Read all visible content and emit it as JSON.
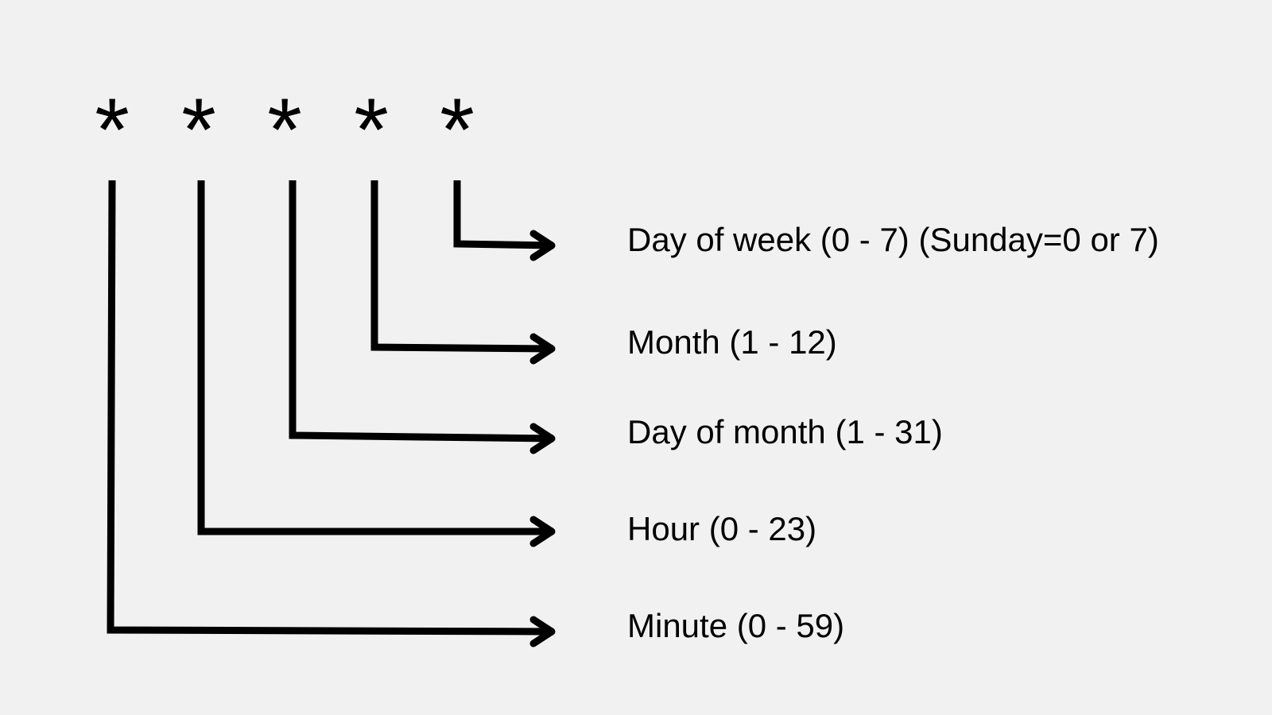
{
  "cron_fields": [
    {
      "symbol": "*",
      "label": "Minute (0 - 59)"
    },
    {
      "symbol": "*",
      "label": "Hour (0 - 23)"
    },
    {
      "symbol": "*",
      "label": "Day of month (1 - 31)"
    },
    {
      "symbol": "*",
      "label": "Month (1 - 12)"
    },
    {
      "symbol": "*",
      "label": "Day of week (0 - 7) (Sunday=0 or 7)"
    }
  ],
  "colors": {
    "background": "#f1f1f1",
    "ink": "#000000"
  }
}
